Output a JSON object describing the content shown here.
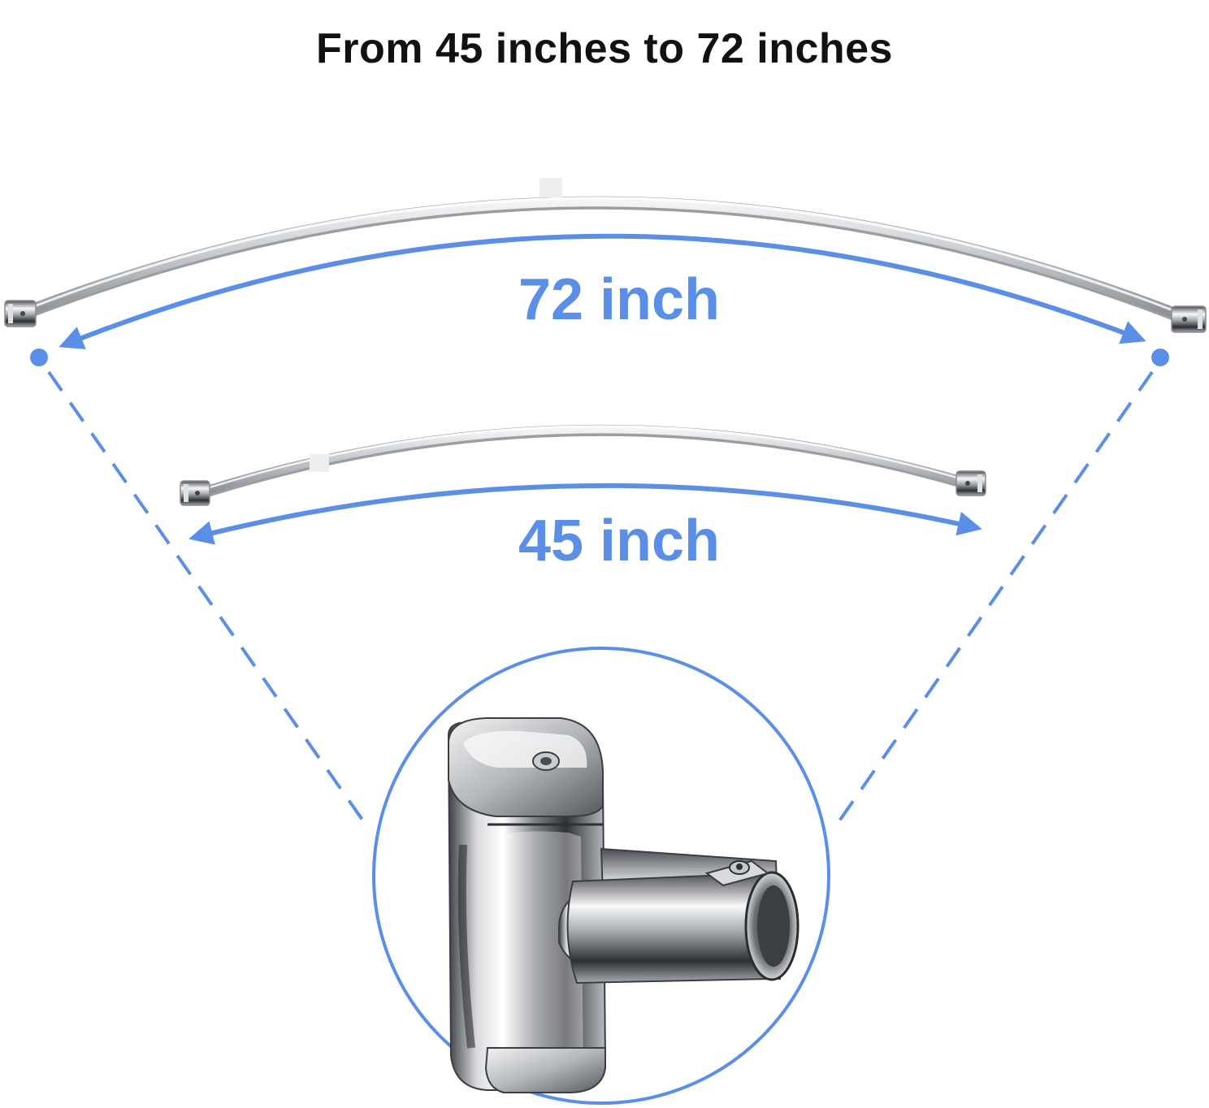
{
  "headline": "From 45 inches to 72 inches",
  "long_rod": {
    "label": "72 inch"
  },
  "short_rod": {
    "label": "45 inch"
  },
  "detail": {
    "icon": "wall-flange-bracket-icon"
  },
  "colors": {
    "accent": "#5b8ee6",
    "headline": "#111111",
    "chrome_dark": "#9a9ea3",
    "chrome_light": "#e6e8eb"
  }
}
